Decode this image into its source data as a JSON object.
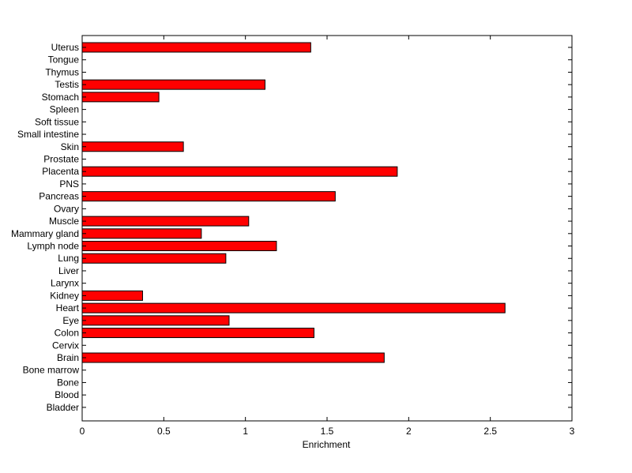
{
  "chart_data": {
    "type": "bar",
    "orientation": "horizontal",
    "title": "",
    "xlabel": "Enrichment",
    "ylabel": "",
    "xlim": [
      0,
      3
    ],
    "x_ticks": [
      0,
      0.5,
      1,
      1.5,
      2,
      2.5,
      3
    ],
    "x_tick_labels": [
      "0",
      "0.5",
      "1",
      "1.5",
      "2",
      "2.5",
      "3"
    ],
    "grid": false,
    "legend": "none",
    "bar_color": "#ff0000",
    "edge_color": "#000000",
    "categories": [
      "Uterus",
      "Tongue",
      "Thymus",
      "Testis",
      "Stomach",
      "Spleen",
      "Soft tissue",
      "Small intestine",
      "Skin",
      "Prostate",
      "Placenta",
      "PNS",
      "Pancreas",
      "Ovary",
      "Muscle",
      "Mammary gland",
      "Lymph node",
      "Lung",
      "Liver",
      "Larynx",
      "Kidney",
      "Heart",
      "Eye",
      "Colon",
      "Cervix",
      "Brain",
      "Bone marrow",
      "Bone",
      "Blood",
      "Bladder"
    ],
    "values": [
      1.4,
      0,
      0,
      1.12,
      0.47,
      0,
      0,
      0,
      0.62,
      0,
      1.93,
      0,
      1.55,
      0,
      1.02,
      0.73,
      1.19,
      0.88,
      0,
      0,
      0.37,
      2.59,
      0.9,
      1.42,
      0,
      1.85,
      0,
      0,
      0,
      0
    ]
  }
}
